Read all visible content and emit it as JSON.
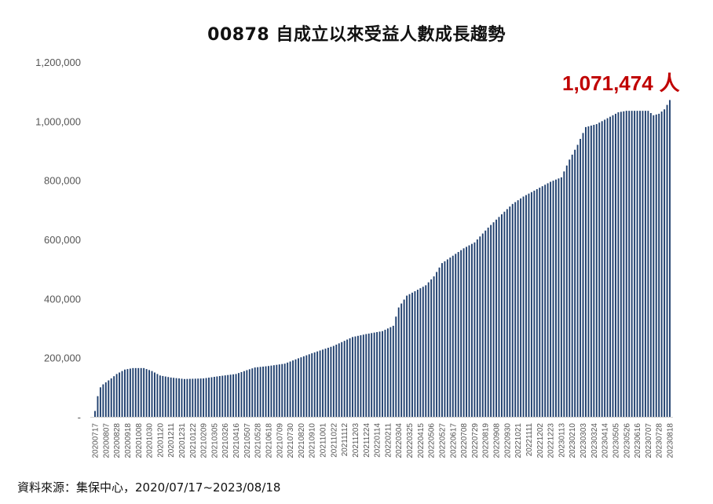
{
  "chart_data": {
    "type": "bar",
    "title": "00878 自成立以來受益人數成長趨勢",
    "xlabel": "",
    "ylabel": "",
    "ylim": [
      0,
      1200000
    ],
    "yticks": [
      "-",
      "200,000",
      "400,000",
      "600,000",
      "800,000",
      "1,000,000",
      "1,200,000"
    ],
    "xtick_labels": [
      "20200717",
      "20200807",
      "20200828",
      "20200918",
      "20201008",
      "20201030",
      "20201120",
      "20201211",
      "20201231",
      "20210122",
      "20210209",
      "20210305",
      "20210326",
      "20210416",
      "20210507",
      "20210528",
      "20210618",
      "20210709",
      "20210730",
      "20210820",
      "20210910",
      "20211001",
      "20211022",
      "20211112",
      "20211203",
      "20211224",
      "20220114",
      "20220211",
      "20220304",
      "20220325",
      "20220415",
      "20220506",
      "20220527",
      "20220617",
      "20220708",
      "20220729",
      "20220819",
      "20220908",
      "20220930",
      "20221021",
      "20221111",
      "20221202",
      "20221223",
      "20230113",
      "20230210",
      "20230303",
      "20230324",
      "20230414",
      "20230505",
      "20230526",
      "20230616",
      "20230707",
      "20230728",
      "20230818"
    ],
    "bar_color": "#1f3f6e",
    "grid": false,
    "anchors": [
      [
        0,
        20000
      ],
      [
        1,
        70000
      ],
      [
        2,
        100000
      ],
      [
        3,
        110000
      ],
      [
        6,
        130000
      ],
      [
        8,
        145000
      ],
      [
        11,
        160000
      ],
      [
        14,
        165000
      ],
      [
        18,
        165000
      ],
      [
        21,
        155000
      ],
      [
        24,
        140000
      ],
      [
        28,
        133000
      ],
      [
        33,
        128000
      ],
      [
        40,
        130000
      ],
      [
        46,
        138000
      ],
      [
        52,
        145000
      ],
      [
        56,
        158000
      ],
      [
        59,
        167000
      ],
      [
        64,
        172000
      ],
      [
        70,
        180000
      ],
      [
        75,
        198000
      ],
      [
        80,
        215000
      ],
      [
        88,
        240000
      ],
      [
        95,
        270000
      ],
      [
        100,
        280000
      ],
      [
        106,
        290000
      ],
      [
        110,
        308000
      ],
      [
        112,
        370000
      ],
      [
        115,
        410000
      ],
      [
        118,
        425000
      ],
      [
        122,
        445000
      ],
      [
        125,
        475000
      ],
      [
        128,
        520000
      ],
      [
        132,
        545000
      ],
      [
        136,
        570000
      ],
      [
        140,
        590000
      ],
      [
        145,
        640000
      ],
      [
        150,
        685000
      ],
      [
        154,
        720000
      ],
      [
        158,
        745000
      ],
      [
        163,
        770000
      ],
      [
        168,
        795000
      ],
      [
        172,
        810000
      ],
      [
        175,
        870000
      ],
      [
        178,
        920000
      ],
      [
        181,
        980000
      ],
      [
        185,
        990000
      ],
      [
        189,
        1010000
      ],
      [
        193,
        1030000
      ],
      [
        196,
        1035000
      ],
      [
        200,
        1035000
      ],
      [
        204,
        1035000
      ],
      [
        206,
        1020000
      ],
      [
        208,
        1025000
      ],
      [
        210,
        1040000
      ],
      [
        211,
        1055000
      ],
      [
        212,
        1071474
      ]
    ],
    "annotation": {
      "value": "1,071,474",
      "unit": "人"
    }
  },
  "footer": {
    "source": "資料來源：集保中心，2020/07/17~2023/08/18"
  }
}
